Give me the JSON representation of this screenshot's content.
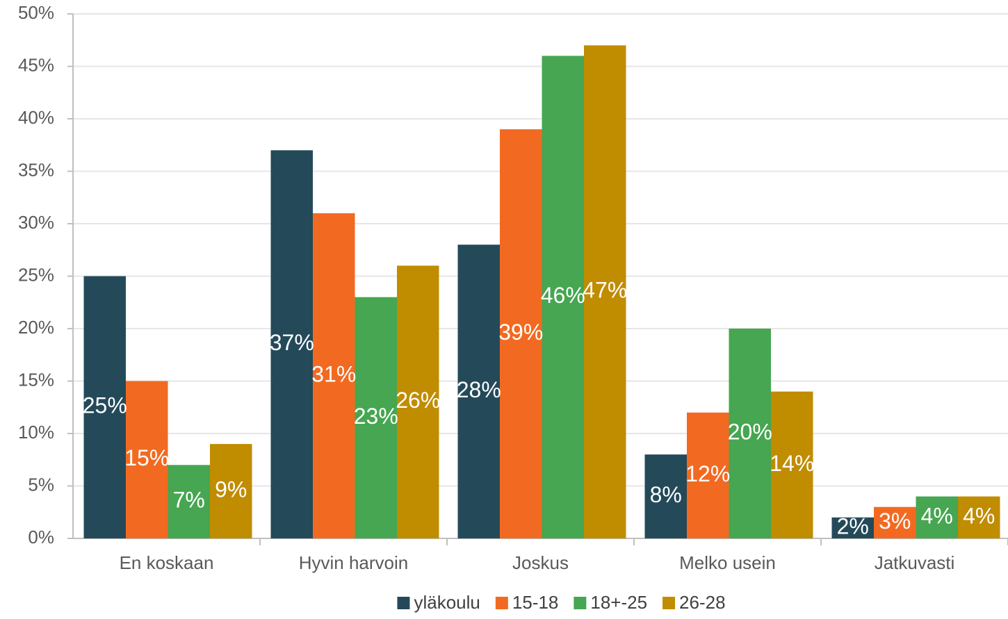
{
  "chart_data": {
    "type": "bar",
    "categories": [
      "En koskaan",
      "Hyvin harvoin",
      "Joskus",
      "Melko usein",
      "Jatkuvasti"
    ],
    "series": [
      {
        "name": "yläkoulu",
        "color": "#244a5a",
        "values": [
          25,
          37,
          28,
          8,
          2
        ],
        "value_labels": [
          "25%",
          "37%",
          "28%",
          "8%",
          "2%"
        ]
      },
      {
        "name": "15-18",
        "color": "#f26a21",
        "values": [
          15,
          31,
          39,
          12,
          3
        ],
        "value_labels": [
          "15%",
          "31%",
          "39%",
          "12%",
          "3%"
        ]
      },
      {
        "name": "18+-25",
        "color": "#46a651",
        "values": [
          7,
          23,
          46,
          20,
          4
        ],
        "value_labels": [
          "7%",
          "23%",
          "46%",
          "20%",
          "4%"
        ]
      },
      {
        "name": "26-28",
        "color": "#c08c00",
        "values": [
          9,
          26,
          47,
          14,
          4
        ],
        "value_labels": [
          "9%",
          "26%",
          "47%",
          "14%",
          "4%"
        ]
      }
    ],
    "ylim": [
      0,
      50
    ],
    "yticks": [
      {
        "value": 0,
        "label": "0%"
      },
      {
        "value": 5,
        "label": "5%"
      },
      {
        "value": 10,
        "label": "10%"
      },
      {
        "value": 15,
        "label": "15%"
      },
      {
        "value": 20,
        "label": "20%"
      },
      {
        "value": 25,
        "label": "25%"
      },
      {
        "value": 30,
        "label": "30%"
      },
      {
        "value": 35,
        "label": "35%"
      },
      {
        "value": 40,
        "label": "40%"
      },
      {
        "value": 45,
        "label": "45%"
      },
      {
        "value": 50,
        "label": "50%"
      }
    ],
    "grid": true,
    "legend": "bottom"
  }
}
